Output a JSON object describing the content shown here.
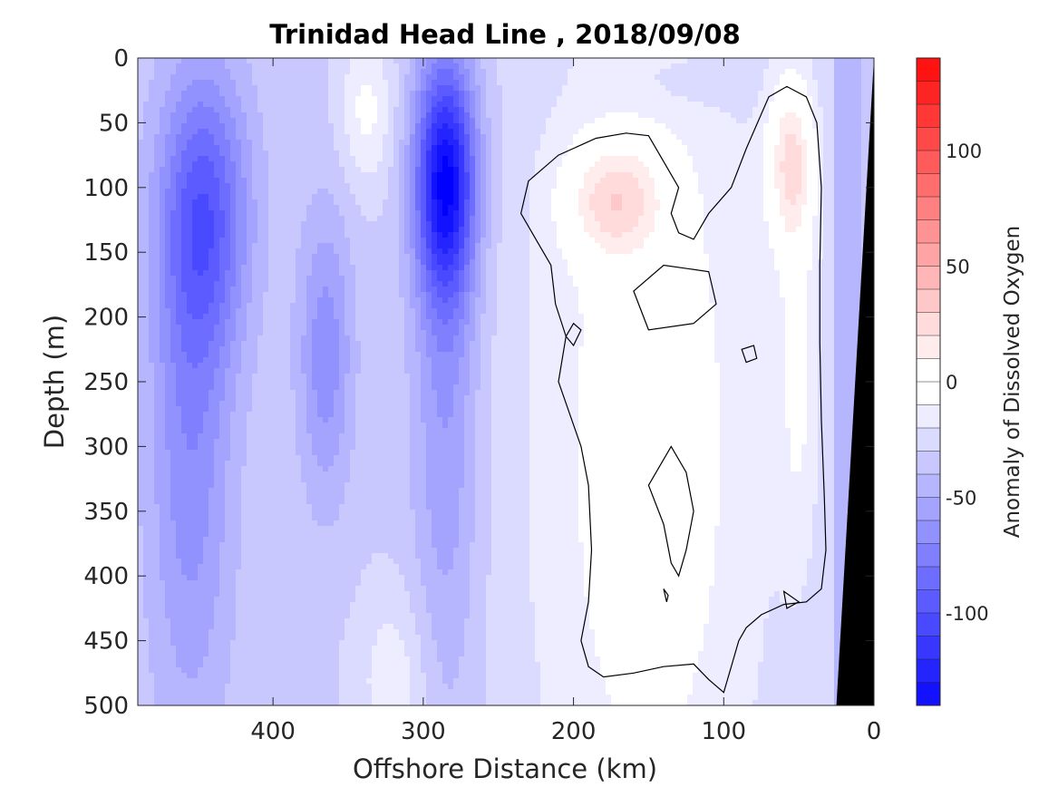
{
  "chart_data": {
    "type": "heatmap",
    "title": "Trinidad Head Line , 2018/09/08",
    "xlabel": "Offshore Distance (km)",
    "ylabel": "Depth (m)",
    "colorbar_label": "Anomaly of Dissolved Oxygen",
    "x_axis_reversed": true,
    "xlim": [
      490,
      0
    ],
    "ylim": [
      0,
      500
    ],
    "clim": [
      -140,
      140
    ],
    "contour_interval": 10,
    "x_ticks": [
      400,
      300,
      200,
      100,
      0
    ],
    "y_ticks": [
      0,
      50,
      100,
      150,
      200,
      250,
      300,
      350,
      400,
      450,
      500
    ],
    "colorbar_ticks": [
      100,
      50,
      0,
      -50,
      -100
    ],
    "zero_contour_color": "#000000",
    "bathymetry_color": "#000000",
    "colormap": {
      "negative": "#0000ff",
      "zero": "#ffffff",
      "positive": "#ff0000"
    },
    "features": [
      {
        "kind": "minimum",
        "x": 285,
        "depth": 95,
        "value": -125
      },
      {
        "kind": "minimum",
        "x": 445,
        "depth": 120,
        "value": -85
      },
      {
        "kind": "minimum",
        "x": 365,
        "depth": 230,
        "value": -65
      },
      {
        "kind": "maximum",
        "x": 173,
        "depth": 110,
        "value": 35
      },
      {
        "kind": "maximum",
        "x": 55,
        "depth": 80,
        "value": 45
      },
      {
        "kind": "zero_region",
        "x_range": [
          250,
          20
        ],
        "depth_range": [
          60,
          500
        ]
      }
    ]
  }
}
